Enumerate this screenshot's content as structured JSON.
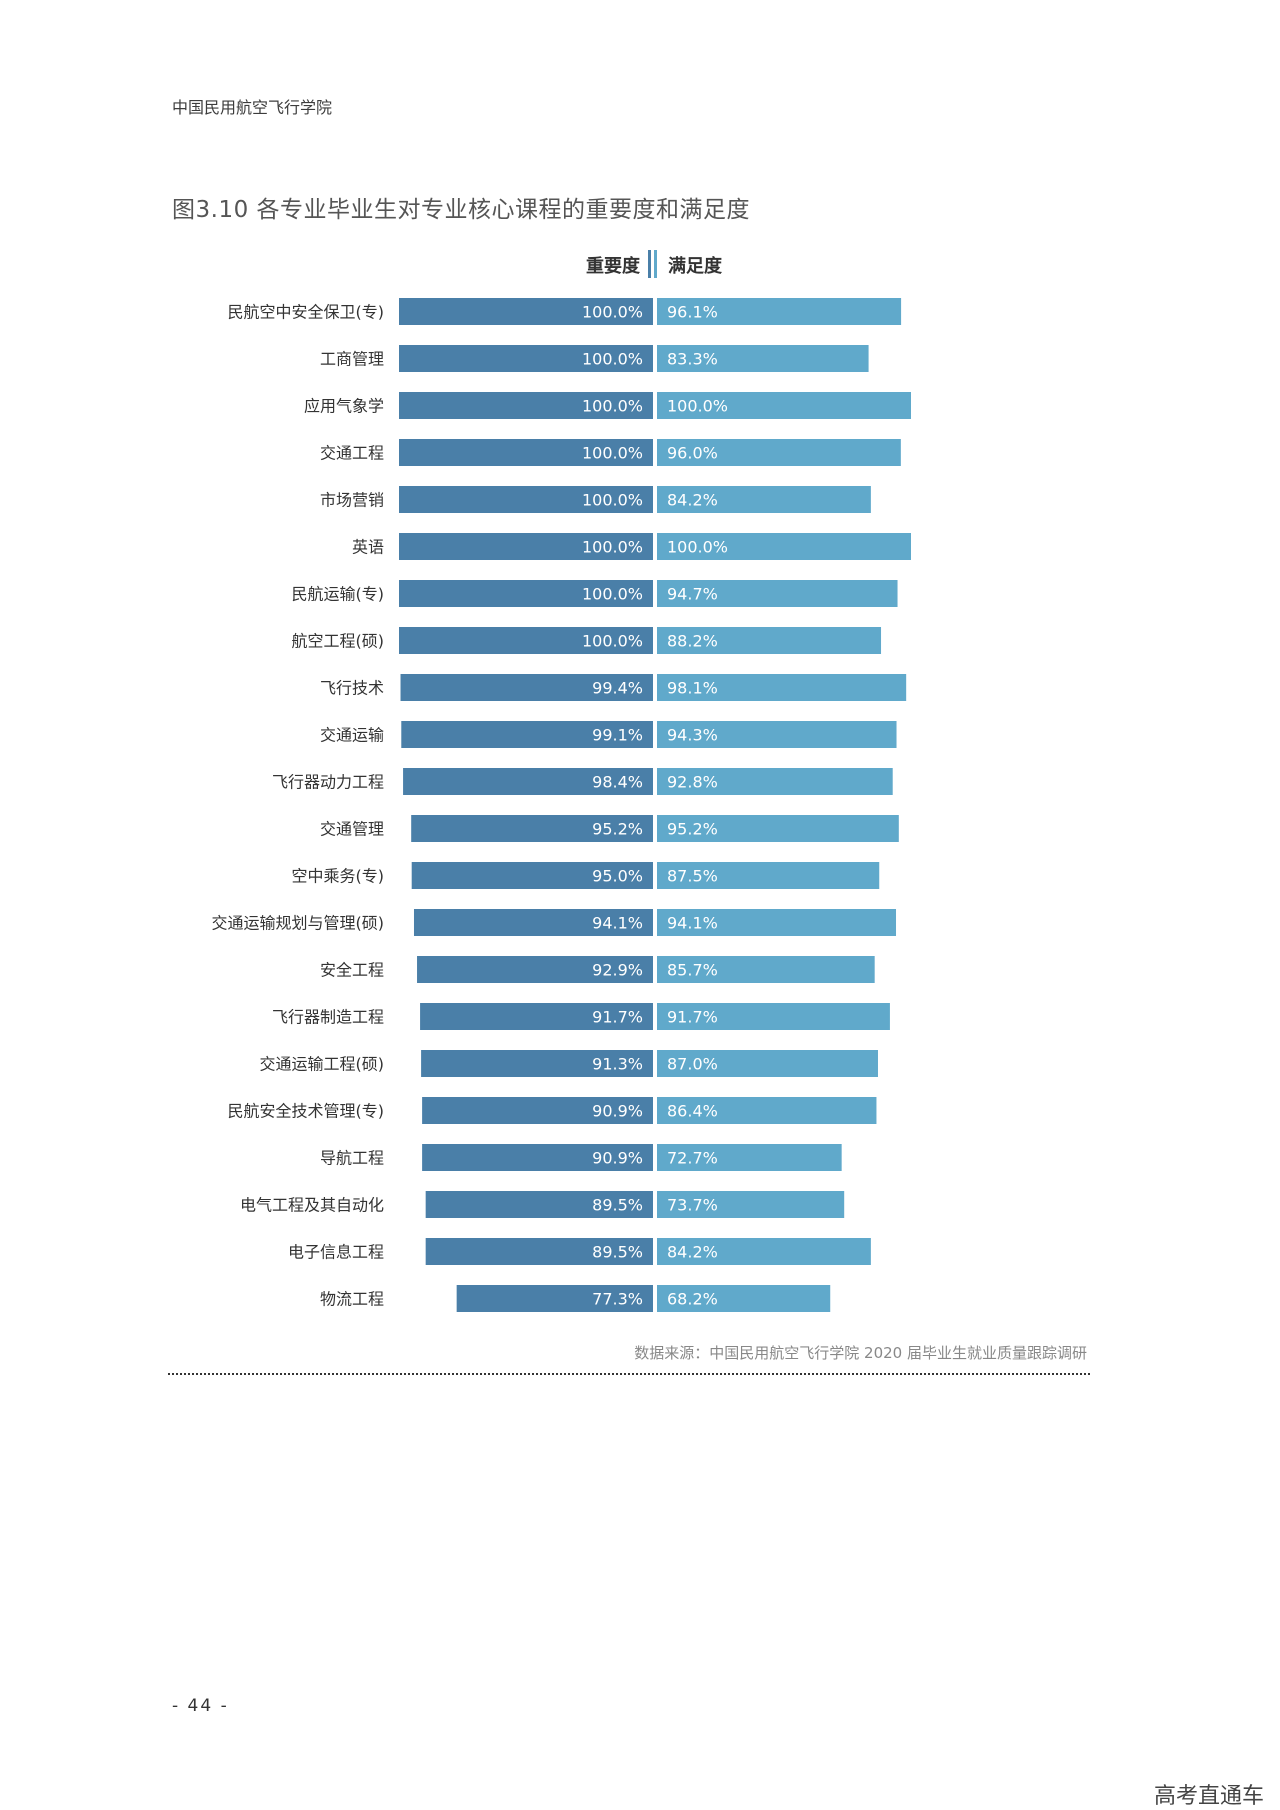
{
  "header": {
    "school": "中国民用航空飞行学院"
  },
  "title": "图3.10 各专业毕业生对专业核心课程的重要度和满足度",
  "legend": {
    "importance": "重要度",
    "satisfaction": "满足度"
  },
  "colors": {
    "importance": "#4a7fa8",
    "satisfaction": "#60a9cb"
  },
  "chart_data": {
    "type": "bar",
    "orientation": "horizontal-diverging",
    "categories": [
      "民航空中安全保卫(专)",
      "工商管理",
      "应用气象学",
      "交通工程",
      "市场营销",
      "英语",
      "民航运输(专)",
      "航空工程(硕)",
      "飞行技术",
      "交通运输",
      "飞行器动力工程",
      "交通管理",
      "空中乘务(专)",
      "交通运输规划与管理(硕)",
      "安全工程",
      "飞行器制造工程",
      "交通运输工程(硕)",
      "民航安全技术管理(专)",
      "导航工程",
      "电气工程及其自动化",
      "电子信息工程",
      "物流工程"
    ],
    "series": [
      {
        "name": "重要度",
        "values": [
          100.0,
          100.0,
          100.0,
          100.0,
          100.0,
          100.0,
          100.0,
          100.0,
          99.4,
          99.1,
          98.4,
          95.2,
          95.0,
          94.1,
          92.9,
          91.7,
          91.3,
          90.9,
          90.9,
          89.5,
          89.5,
          77.3
        ],
        "labels": [
          "100.0%",
          "100.0%",
          "100.0%",
          "100.0%",
          "100.0%",
          "100.0%",
          "100.0%",
          "100.0%",
          "99.4%",
          "99.1%",
          "98.4%",
          "95.2%",
          "95.0%",
          "94.1%",
          "92.9%",
          "91.7%",
          "91.3%",
          "90.9%",
          "90.9%",
          "89.5%",
          "89.5%",
          "77.3%"
        ]
      },
      {
        "name": "满足度",
        "values": [
          96.1,
          83.3,
          100.0,
          96.0,
          84.2,
          100.0,
          94.7,
          88.2,
          98.1,
          94.3,
          92.8,
          95.2,
          87.5,
          94.1,
          85.7,
          91.7,
          87.0,
          86.4,
          72.7,
          73.7,
          84.2,
          68.2
        ],
        "labels": [
          "96.1%",
          "83.3%",
          "100.0%",
          "96.0%",
          "84.2%",
          "100.0%",
          "94.7%",
          "88.2%",
          "98.1%",
          "94.3%",
          "92.8%",
          "95.2%",
          "87.5%",
          "94.1%",
          "85.7%",
          "91.7%",
          "87.0%",
          "86.4%",
          "72.7%",
          "73.7%",
          "84.2%",
          "68.2%"
        ]
      }
    ],
    "unit": "%",
    "xlim": [
      0,
      100
    ]
  },
  "source": "数据来源：中国民用航空飞行学院 2020 届毕业生就业质量跟踪调研",
  "page_number": "- 44 -",
  "watermark": "高考直通车"
}
